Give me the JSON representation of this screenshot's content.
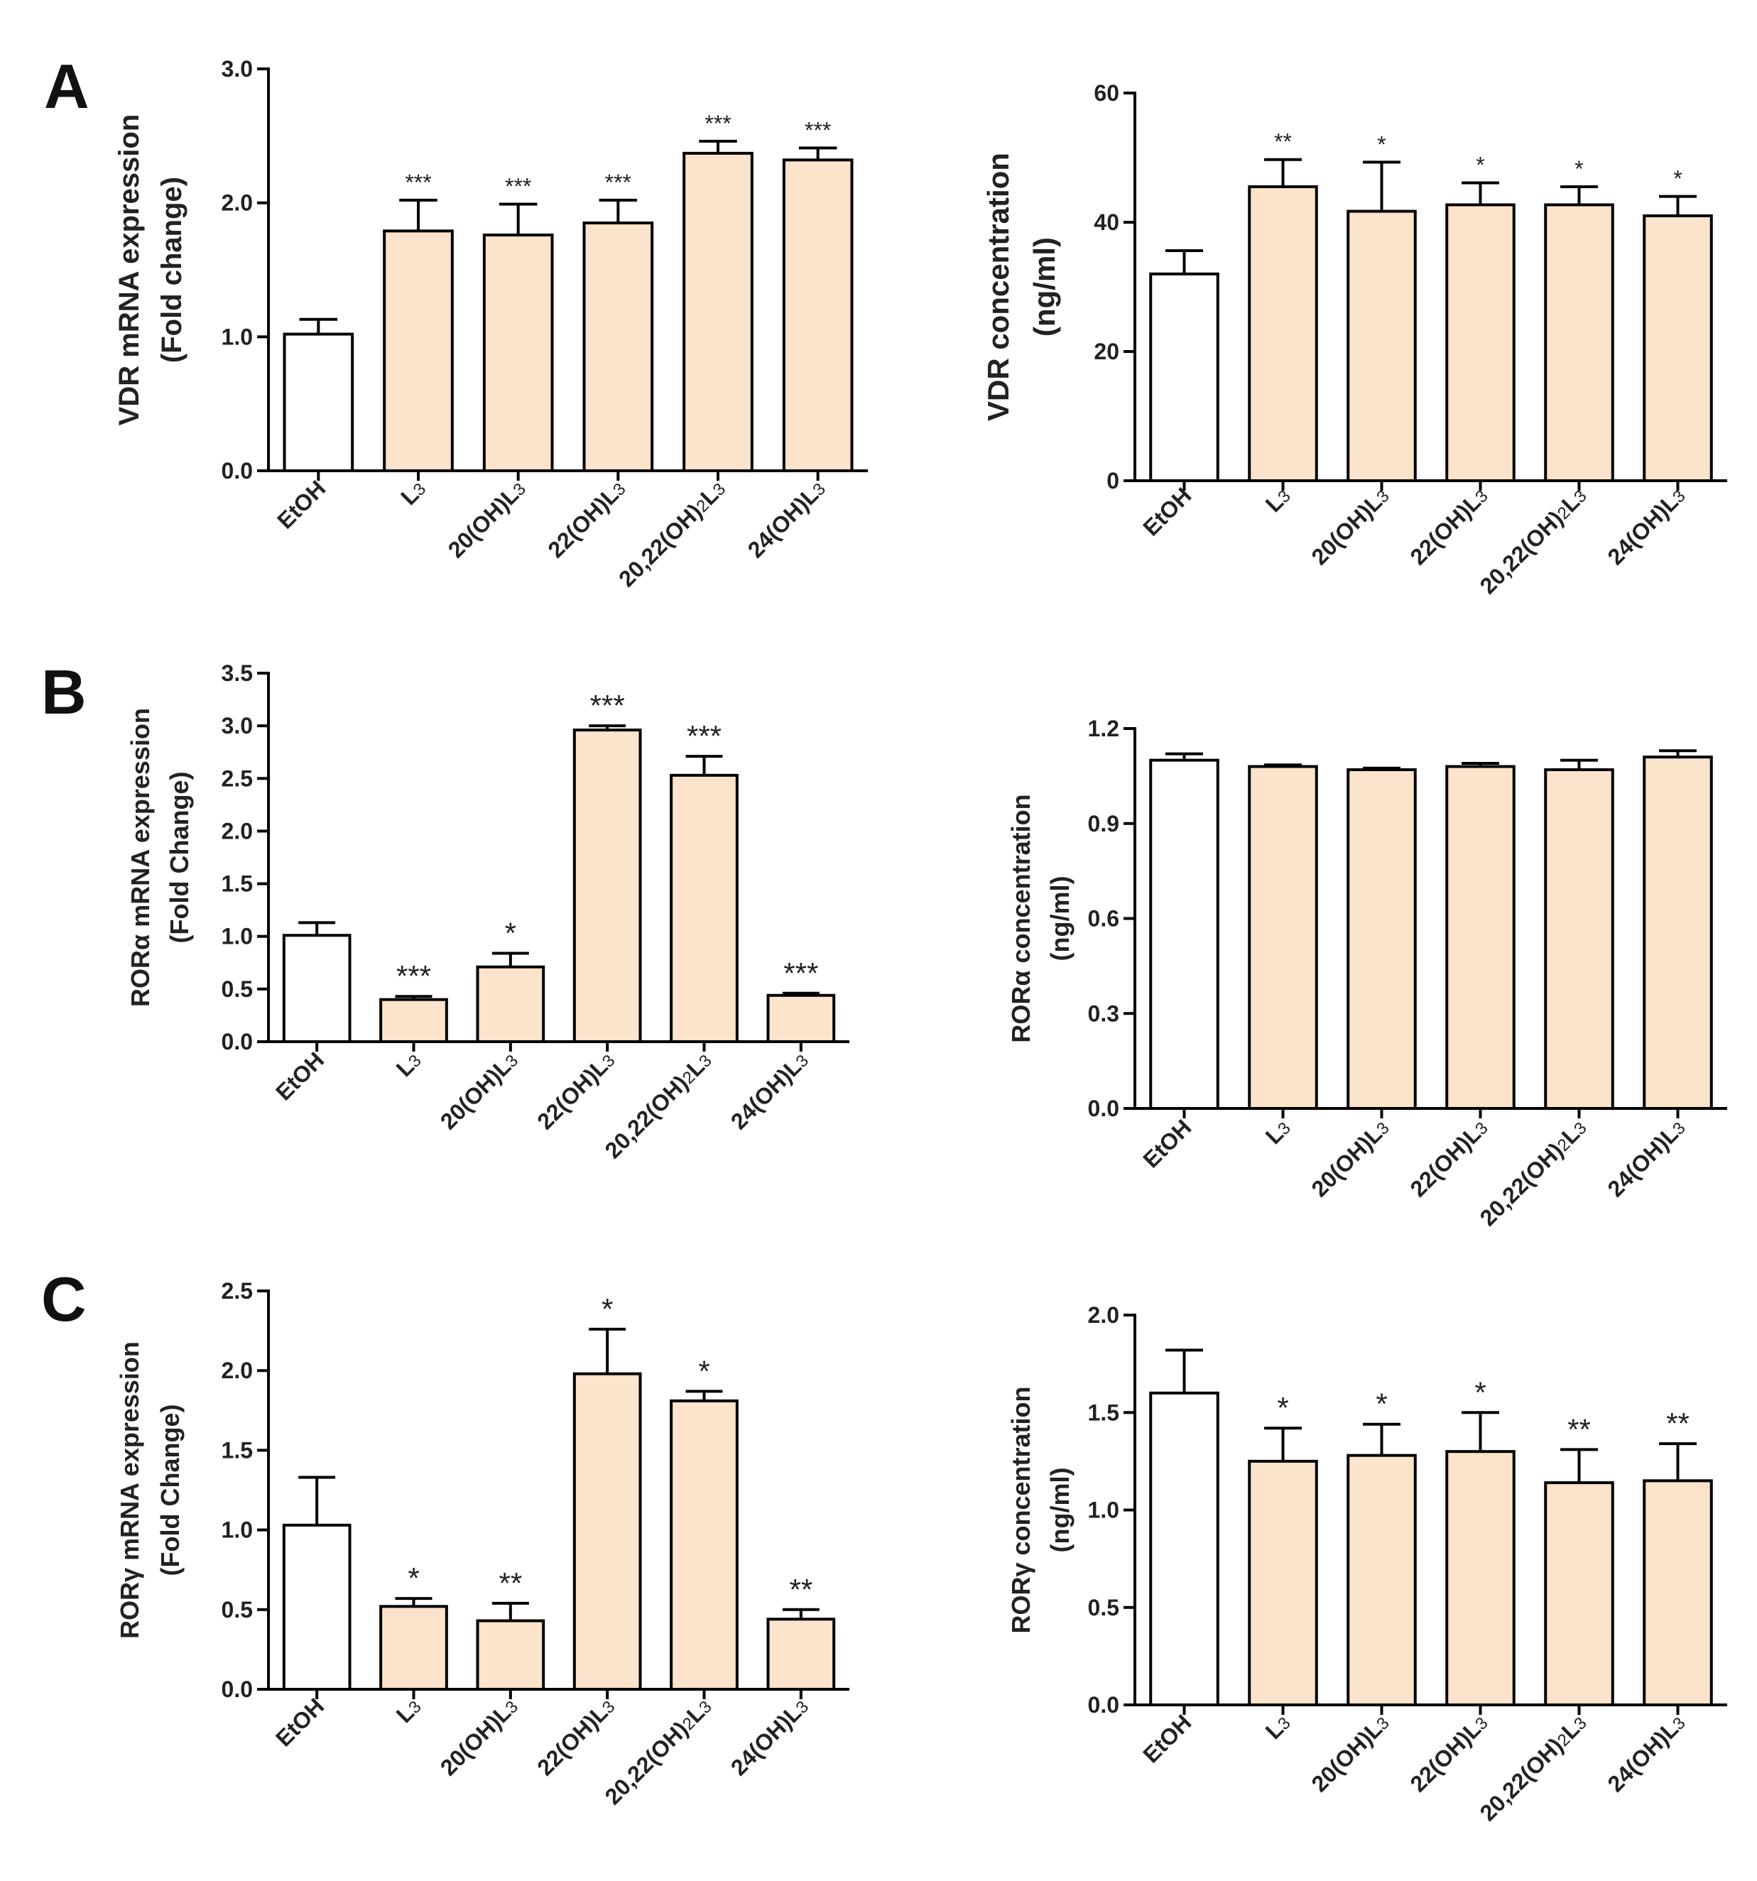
{
  "colors": {
    "control": "#ffffff",
    "treated": "#fce3cb",
    "stroke": "#000000"
  },
  "panels": [
    {
      "letter": "A"
    },
    {
      "letter": "B"
    },
    {
      "letter": "C"
    }
  ],
  "chart_data": [
    {
      "type": "bar",
      "panel": "A",
      "ylabel": [
        "VDR  mRNA expression",
        "(Fold change)"
      ],
      "categories": [
        "EtOH",
        "L3",
        "20(OH)L3",
        "22(OH)L3",
        "20,22(OH)2L3",
        "24(OH)L3"
      ],
      "values": [
        1.02,
        1.79,
        1.76,
        1.85,
        2.37,
        2.32
      ],
      "errors": [
        0.11,
        0.23,
        0.23,
        0.17,
        0.09,
        0.09
      ],
      "significance": [
        "",
        "***",
        "***",
        "***",
        "***",
        "***"
      ],
      "ylim": [
        0,
        3.0
      ],
      "yticks": [
        0.0,
        1.0,
        2.0,
        3.0
      ],
      "ytick_labels": [
        "0.0",
        "1.0",
        "2.0",
        "3.0"
      ]
    },
    {
      "type": "bar",
      "panel": "A",
      "ylabel": [
        "VDR concentration",
        "(ng/ml)"
      ],
      "categories": [
        "EtOH",
        "L3",
        "20(OH)L3",
        "22(OH)L3",
        "20,22(OH)2L3",
        "24(OH)L3"
      ],
      "values": [
        32,
        45.5,
        41.7,
        42.7,
        42.7,
        41.0
      ],
      "errors": [
        3.6,
        4.2,
        7.6,
        3.4,
        2.8,
        3.0
      ],
      "significance": [
        "",
        "**",
        "*",
        "*",
        "*",
        "*"
      ],
      "ylim": [
        0,
        60
      ],
      "yticks": [
        0,
        20,
        40,
        60
      ],
      "ytick_labels": [
        "0",
        "20",
        "40",
        "60"
      ]
    },
    {
      "type": "bar",
      "panel": "B",
      "ylabel": [
        "RORα mRNA expression",
        "(Fold Change)"
      ],
      "categories": [
        "EtOH",
        "L3",
        "20(OH)L3",
        "22(OH)L3",
        "20,22(OH)2L3",
        "24(OH)L3"
      ],
      "values": [
        1.01,
        0.4,
        0.71,
        2.96,
        2.53,
        0.44
      ],
      "errors": [
        0.12,
        0.03,
        0.13,
        0.04,
        0.18,
        0.02
      ],
      "significance": [
        "",
        "***",
        "*",
        "***",
        "***",
        "***"
      ],
      "ylim": [
        0,
        3.5
      ],
      "yticks": [
        0.0,
        0.5,
        1.0,
        1.5,
        2.0,
        2.5,
        3.0,
        3.5
      ],
      "ytick_labels": [
        "0.0",
        "0.5",
        "1.0",
        "1.5",
        "2.0",
        "2.5",
        "3.0",
        "3.5"
      ]
    },
    {
      "type": "bar",
      "panel": "B",
      "ylabel": [
        "RORα concentration",
        "(ng/ml)"
      ],
      "categories": [
        "EtOH",
        "L3",
        "20(OH)L3",
        "22(OH)L3",
        "20,22(OH)2L3",
        "24(OH)L3"
      ],
      "values": [
        1.1,
        1.08,
        1.07,
        1.08,
        1.07,
        1.11
      ],
      "errors": [
        0.02,
        0.005,
        0.005,
        0.01,
        0.03,
        0.02
      ],
      "significance": [
        "",
        "",
        "",
        "",
        "",
        ""
      ],
      "ylim": [
        0,
        1.2
      ],
      "yticks": [
        0.0,
        0.3,
        0.6,
        0.9,
        1.2
      ],
      "ytick_labels": [
        "0.0",
        "0.3",
        "0.6",
        "0.9",
        "1.2"
      ]
    },
    {
      "type": "bar",
      "panel": "C",
      "ylabel": [
        "RORγ mRNA expression",
        "(Fold Change)"
      ],
      "categories": [
        "EtOH",
        "L3",
        "20(OH)L3",
        "22(OH)L3",
        "20,22(OH)2L3",
        "24(OH)L3"
      ],
      "values": [
        1.03,
        0.52,
        0.43,
        1.98,
        1.81,
        0.44
      ],
      "errors": [
        0.3,
        0.05,
        0.11,
        0.28,
        0.06,
        0.06
      ],
      "significance": [
        "",
        "*",
        "**",
        "*",
        "*",
        "**"
      ],
      "ylim": [
        0,
        2.5
      ],
      "yticks": [
        0.0,
        0.5,
        1.0,
        1.5,
        2.0,
        2.5
      ],
      "ytick_labels": [
        "0.0",
        "0.5",
        "1.0",
        "1.5",
        "2.0",
        "2.5"
      ]
    },
    {
      "type": "bar",
      "panel": "C",
      "ylabel": [
        "RORγ concentration",
        "(ng/ml)"
      ],
      "categories": [
        "EtOH",
        "L3",
        "20(OH)L3",
        "22(OH)L3",
        "20,22(OH)2L3",
        "24(OH)L3"
      ],
      "values": [
        1.6,
        1.25,
        1.28,
        1.3,
        1.14,
        1.15
      ],
      "errors": [
        0.22,
        0.17,
        0.16,
        0.2,
        0.17,
        0.19
      ],
      "significance": [
        "",
        "*",
        "*",
        "*",
        "**",
        "**"
      ],
      "ylim": [
        0,
        2.0
      ],
      "yticks": [
        0.0,
        0.5,
        1.0,
        1.5,
        2.0
      ],
      "ytick_labels": [
        "0.0",
        "0.5",
        "1.0",
        "1.5",
        "2.0"
      ]
    }
  ]
}
